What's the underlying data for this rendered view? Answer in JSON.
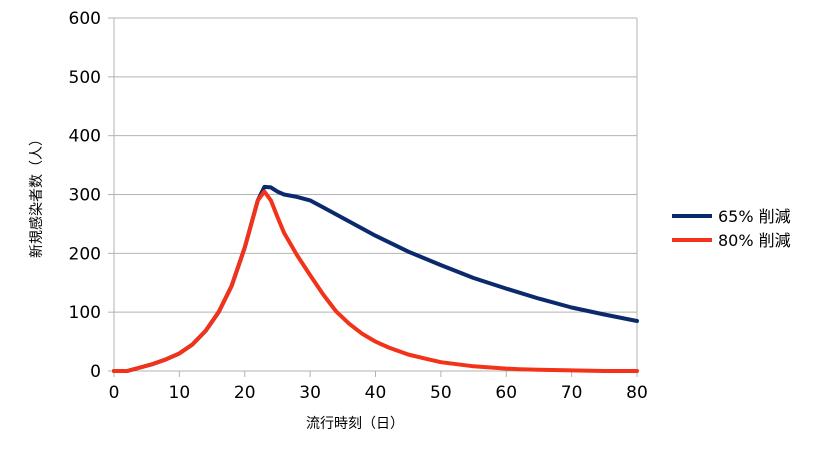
{
  "chart_data": {
    "type": "line",
    "title": "",
    "xlabel": "流行時刻（日）",
    "ylabel": "新規感染者数（人）",
    "xlim": [
      0,
      80
    ],
    "ylim": [
      0,
      600
    ],
    "xticks": [
      0,
      10,
      20,
      30,
      40,
      50,
      60,
      70,
      80
    ],
    "yticks": [
      0,
      100,
      200,
      300,
      400,
      500,
      600
    ],
    "grid": true,
    "legend_position": "right",
    "series": [
      {
        "name": "65% 削減",
        "color": "#0b2a6e",
        "x": [
          0,
          2,
          4,
          6,
          8,
          10,
          12,
          14,
          16,
          18,
          20,
          22,
          23,
          24,
          25,
          26,
          28,
          30,
          32,
          35,
          40,
          45,
          50,
          55,
          60,
          65,
          70,
          75,
          80
        ],
        "y": [
          0,
          0,
          6,
          12,
          20,
          30,
          45,
          68,
          100,
          145,
          210,
          290,
          313,
          312,
          305,
          300,
          296,
          290,
          278,
          260,
          230,
          203,
          180,
          158,
          140,
          123,
          108,
          96,
          85
        ]
      },
      {
        "name": "80% 削減",
        "color": "#f2331a",
        "x": [
          0,
          2,
          4,
          6,
          8,
          10,
          12,
          14,
          16,
          18,
          20,
          22,
          23,
          24,
          25,
          26,
          28,
          30,
          32,
          34,
          36,
          38,
          40,
          42,
          45,
          48,
          50,
          55,
          60,
          62,
          65,
          70,
          75,
          80
        ],
        "y": [
          0,
          0,
          6,
          12,
          20,
          30,
          45,
          68,
          100,
          145,
          210,
          290,
          305,
          290,
          262,
          235,
          197,
          163,
          130,
          101,
          80,
          63,
          50,
          40,
          28,
          20,
          15,
          8,
          4,
          3,
          2,
          1,
          0,
          0
        ]
      }
    ]
  }
}
